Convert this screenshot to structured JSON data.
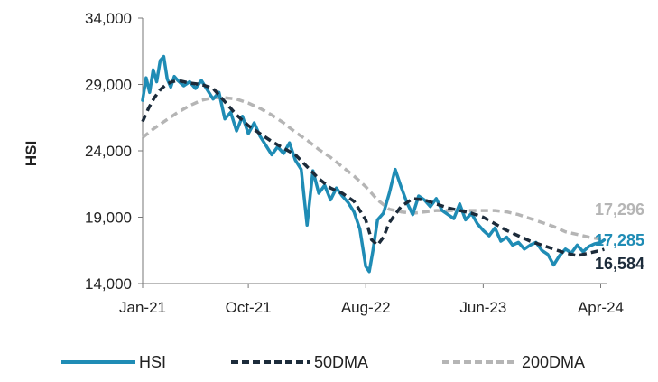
{
  "chart_data": {
    "type": "line",
    "ylabel": "HSI",
    "ylim": [
      14000,
      34000
    ],
    "yticks": [
      "14,000",
      "19,000",
      "24,000",
      "29,000",
      "34,000"
    ],
    "ytick_values": [
      14000,
      19000,
      24000,
      29000,
      34000
    ],
    "xlim": [
      0,
      39.5
    ],
    "xticks": [
      "Jan-21",
      "Oct-21",
      "Aug-22",
      "Jun-23",
      "Apr-24"
    ],
    "xtick_positions": [
      0,
      9,
      19,
      29,
      39
    ],
    "grid": false,
    "legend_position": "bottom",
    "colors": {
      "hsi": "#1f8cb5",
      "dma50": "#1c2b3a",
      "dma200": "#b5b5b5"
    },
    "series": [
      {
        "name": "HSI",
        "x": [
          0,
          0.3,
          0.6,
          0.9,
          1.2,
          1.5,
          1.8,
          2.1,
          2.4,
          2.7,
          3.0,
          3.5,
          4.0,
          4.5,
          5.0,
          5.5,
          6.0,
          6.5,
          7.0,
          7.5,
          8.0,
          8.5,
          9.0,
          9.5,
          10.0,
          10.5,
          11.0,
          11.5,
          12.0,
          12.5,
          13.0,
          13.5,
          14.0,
          14.5,
          15.0,
          15.5,
          16.0,
          16.5,
          17.0,
          17.5,
          18.0,
          18.5,
          19.0,
          19.3,
          19.6,
          20.0,
          20.5,
          21.0,
          21.5,
          22.0,
          22.5,
          23.0,
          23.5,
          24.0,
          24.5,
          25.0,
          25.5,
          26.0,
          26.5,
          27.0,
          27.5,
          28.0,
          28.5,
          29.0,
          29.5,
          30.0,
          30.5,
          31.0,
          31.5,
          32.0,
          32.5,
          33.0,
          33.5,
          34.0,
          34.5,
          35.0,
          35.5,
          36.0,
          36.5,
          37.0,
          37.5,
          38.0,
          38.5,
          39.0,
          39.3
        ],
        "y": [
          27800,
          29500,
          28400,
          30100,
          29200,
          30800,
          31100,
          29400,
          28800,
          29600,
          29300,
          28900,
          29200,
          28700,
          29300,
          28600,
          27900,
          28400,
          26400,
          26900,
          25500,
          26600,
          25300,
          26100,
          25100,
          24400,
          23700,
          24300,
          23800,
          24600,
          23300,
          22600,
          18400,
          22500,
          20800,
          21400,
          20300,
          21200,
          20600,
          20100,
          19400,
          18100,
          15300,
          14900,
          16400,
          18800,
          19300,
          20800,
          22600,
          21300,
          20100,
          19200,
          20600,
          20300,
          19800,
          20400,
          19500,
          19200,
          18900,
          20000,
          18800,
          19300,
          18500,
          18000,
          17600,
          18200,
          17200,
          17500,
          16900,
          17100,
          16600,
          16900,
          17100,
          16500,
          16200,
          15400,
          16100,
          16600,
          16300,
          16900,
          16400,
          16800,
          17000,
          17100,
          17285
        ]
      },
      {
        "name": "50DMA",
        "x": [
          0,
          0.5,
          1,
          1.5,
          2,
          2.5,
          3,
          4,
          5,
          6,
          7,
          8,
          9,
          10,
          11,
          12,
          13,
          14,
          15,
          16,
          17,
          18,
          19,
          19.5,
          20,
          20.5,
          21,
          22,
          23,
          24,
          25,
          26,
          27,
          28,
          29,
          30,
          31,
          32,
          33,
          34,
          35,
          36,
          37,
          38,
          39,
          39.3
        ],
        "y": [
          26200,
          27200,
          28000,
          28600,
          29000,
          29200,
          29300,
          29100,
          29000,
          28700,
          27700,
          26700,
          25900,
          25300,
          24700,
          24200,
          23700,
          22800,
          21900,
          21200,
          20800,
          20200,
          18800,
          17300,
          16900,
          17500,
          18600,
          19800,
          20400,
          20300,
          20000,
          19700,
          19500,
          19300,
          19000,
          18500,
          18000,
          17600,
          17200,
          16900,
          16600,
          16300,
          16100,
          16300,
          16500,
          16584
        ]
      },
      {
        "name": "200DMA",
        "x": [
          0,
          1,
          2,
          3,
          4,
          5,
          6,
          7,
          8,
          9,
          10,
          11,
          12,
          13,
          14,
          15,
          16,
          17,
          18,
          19,
          20,
          21,
          22,
          23,
          24,
          25,
          26,
          27,
          28,
          29,
          30,
          31,
          32,
          33,
          34,
          35,
          36,
          37,
          38,
          39,
          39.3
        ],
        "y": [
          25000,
          25700,
          26300,
          26900,
          27400,
          27800,
          28000,
          28000,
          27900,
          27600,
          27200,
          26700,
          26100,
          25400,
          24800,
          24100,
          23500,
          22800,
          22100,
          21300,
          20300,
          19600,
          19400,
          19300,
          19400,
          19500,
          19500,
          19500,
          19500,
          19500,
          19500,
          19400,
          19200,
          18900,
          18600,
          18300,
          17900,
          17700,
          17500,
          17350,
          17296
        ]
      }
    ],
    "end_labels": [
      {
        "text": "17,296",
        "color": "#b5b5b5"
      },
      {
        "text": "17,285",
        "color": "#1f8cb5"
      },
      {
        "text": "16,584",
        "color": "#1c2b3a"
      }
    ],
    "legend": [
      {
        "label": "HSI",
        "key": "hsi"
      },
      {
        "label": "50DMA",
        "key": "dma50"
      },
      {
        "label": "200DMA",
        "key": "dma200"
      }
    ]
  }
}
